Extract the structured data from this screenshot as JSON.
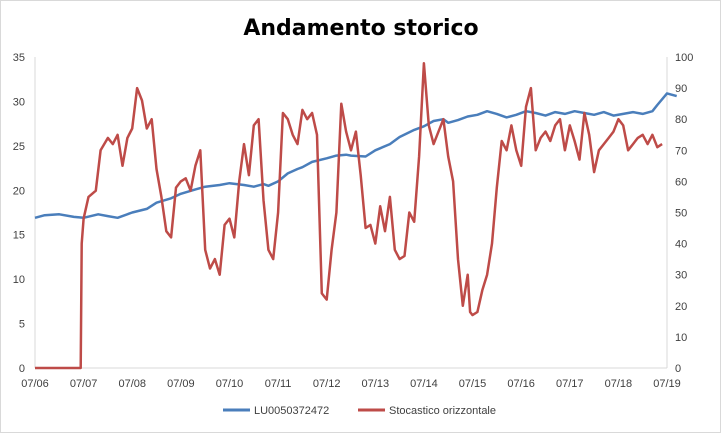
{
  "chart_data": {
    "type": "line",
    "title": "Andamento storico",
    "xlabel": "",
    "ylabel": "",
    "categories": [
      "07/06",
      "07/07",
      "07/08",
      "07/09",
      "07/10",
      "07/11",
      "07/12",
      "07/13",
      "07/14",
      "07/15",
      "07/16",
      "07/17",
      "07/18",
      "07/19"
    ],
    "ylim_left": [
      0,
      35
    ],
    "yticks_left": [
      0,
      5,
      10,
      15,
      20,
      25,
      30,
      35
    ],
    "ylim_right": [
      0,
      100
    ],
    "yticks_right": [
      0,
      10,
      20,
      30,
      40,
      50,
      60,
      70,
      80,
      90,
      100
    ],
    "grid": false,
    "legend_position": "bottom",
    "series": [
      {
        "name": "LU0050372472",
        "axis": "left",
        "color": "#4a7ebb",
        "x": [
          2006.5,
          2006.7,
          2007.0,
          2007.3,
          2007.5,
          2007.8,
          2008.0,
          2008.2,
          2008.5,
          2008.8,
          2009.0,
          2009.3,
          2009.5,
          2009.8,
          2010.0,
          2010.3,
          2010.5,
          2010.8,
          2011.0,
          2011.2,
          2011.3,
          2011.5,
          2011.7,
          2011.9,
          2012.0,
          2012.2,
          2012.5,
          2012.7,
          2012.9,
          2013.0,
          2013.3,
          2013.5,
          2013.8,
          2014.0,
          2014.3,
          2014.5,
          2014.7,
          2014.9,
          2015.0,
          2015.2,
          2015.4,
          2015.6,
          2015.8,
          2016.0,
          2016.2,
          2016.4,
          2016.6,
          2016.8,
          2017.0,
          2017.2,
          2017.4,
          2017.6,
          2017.8,
          2018.0,
          2018.2,
          2018.4,
          2018.6,
          2018.8,
          2019.0,
          2019.2,
          2019.3,
          2019.5,
          2019.7
        ],
        "values": [
          16.9,
          17.2,
          17.3,
          17.0,
          16.9,
          17.3,
          17.1,
          16.9,
          17.5,
          17.9,
          18.6,
          19.1,
          19.6,
          20.1,
          20.4,
          20.6,
          20.8,
          20.6,
          20.4,
          20.7,
          20.5,
          21.0,
          21.9,
          22.4,
          22.6,
          23.2,
          23.6,
          23.9,
          24.0,
          23.9,
          23.8,
          24.5,
          25.2,
          26.0,
          26.8,
          27.2,
          27.8,
          28.0,
          27.6,
          27.9,
          28.3,
          28.5,
          28.9,
          28.6,
          28.2,
          28.5,
          28.9,
          28.7,
          28.4,
          28.8,
          28.6,
          28.9,
          28.7,
          28.5,
          28.8,
          28.4,
          28.6,
          28.8,
          28.6,
          28.9,
          29.6,
          30.9,
          30.6
        ]
      },
      {
        "name": "Stocastico orizzontale",
        "axis": "right",
        "color": "#be4b48",
        "x": [
          2006.5,
          2007.0,
          2007.44,
          2007.46,
          2007.5,
          2007.6,
          2007.75,
          2007.85,
          2008.0,
          2008.1,
          2008.2,
          2008.3,
          2008.4,
          2008.5,
          2008.6,
          2008.7,
          2008.8,
          2008.9,
          2009.0,
          2009.1,
          2009.2,
          2009.3,
          2009.4,
          2009.5,
          2009.6,
          2009.7,
          2009.8,
          2009.9,
          2010.0,
          2010.1,
          2010.2,
          2010.3,
          2010.4,
          2010.5,
          2010.6,
          2010.7,
          2010.8,
          2010.9,
          2011.0,
          2011.1,
          2011.2,
          2011.3,
          2011.4,
          2011.5,
          2011.6,
          2011.7,
          2011.8,
          2011.9,
          2012.0,
          2012.1,
          2012.2,
          2012.3,
          2012.4,
          2012.5,
          2012.6,
          2012.7,
          2012.8,
          2012.9,
          2013.0,
          2013.1,
          2013.2,
          2013.3,
          2013.4,
          2013.5,
          2013.6,
          2013.7,
          2013.8,
          2013.9,
          2014.0,
          2014.1,
          2014.2,
          2014.3,
          2014.4,
          2014.5,
          2014.6,
          2014.7,
          2014.8,
          2014.9,
          2015.0,
          2015.1,
          2015.2,
          2015.3,
          2015.4,
          2015.45,
          2015.5,
          2015.6,
          2015.7,
          2015.8,
          2015.9,
          2016.0,
          2016.1,
          2016.2,
          2016.3,
          2016.4,
          2016.5,
          2016.6,
          2016.7,
          2016.8,
          2016.9,
          2017.0,
          2017.1,
          2017.2,
          2017.3,
          2017.4,
          2017.5,
          2017.6,
          2017.7,
          2017.8,
          2017.9,
          2018.0,
          2018.1,
          2018.2,
          2018.3,
          2018.4,
          2018.5,
          2018.6,
          2018.7,
          2018.8,
          2018.9,
          2019.0,
          2019.1,
          2019.2,
          2019.3,
          2019.4
        ],
        "values": [
          0,
          0,
          0,
          40,
          48,
          55,
          57,
          70,
          74,
          72,
          75,
          65,
          74,
          77,
          90,
          86,
          77,
          80,
          64,
          55,
          44,
          42,
          58,
          60,
          61,
          57,
          65,
          70,
          38,
          32,
          35,
          30,
          46,
          48,
          42,
          60,
          72,
          62,
          78,
          80,
          54,
          38,
          35,
          50,
          82,
          80,
          75,
          72,
          83,
          80,
          82,
          75,
          24,
          22,
          38,
          50,
          85,
          76,
          70,
          76,
          62,
          45,
          46,
          40,
          52,
          44,
          55,
          38,
          35,
          36,
          50,
          47,
          68,
          98,
          78,
          72,
          76,
          80,
          68,
          60,
          35,
          20,
          30,
          18,
          17,
          18,
          25,
          30,
          40,
          58,
          73,
          70,
          78,
          70,
          65,
          84,
          90,
          70,
          74,
          76,
          73,
          78,
          80,
          70,
          78,
          73,
          67,
          82,
          75,
          63,
          70,
          72,
          74,
          76,
          80,
          78,
          70,
          72,
          74,
          75,
          72,
          75,
          71,
          72
        ]
      }
    ]
  }
}
